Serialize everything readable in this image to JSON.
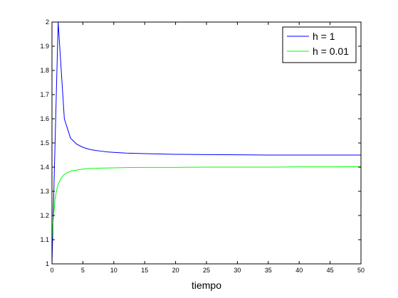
{
  "chart_data": {
    "type": "line",
    "title": "",
    "xlabel": "tiempo",
    "ylabel": "",
    "xlim": [
      0,
      50
    ],
    "ylim": [
      1,
      2
    ],
    "xticks": [
      0,
      5,
      10,
      15,
      20,
      25,
      30,
      35,
      40,
      45,
      50
    ],
    "yticks": [
      1,
      1.1,
      1.2,
      1.3,
      1.4,
      1.5,
      1.6,
      1.7,
      1.8,
      1.9,
      2
    ],
    "xtick_labels": [
      "0",
      "5",
      "10",
      "15",
      "20",
      "25",
      "30",
      "35",
      "40",
      "45",
      "50"
    ],
    "ytick_labels": [
      "1",
      "1.1",
      "1.2",
      "1.3",
      "1.4",
      "1.5",
      "1.6",
      "1.7",
      "1.8",
      "1.9",
      "2"
    ],
    "grid": false,
    "legend_position": "top-right",
    "series": [
      {
        "name": "h = 1",
        "color": "#0000ff",
        "x": [
          0,
          1,
          2,
          3,
          4,
          5,
          6,
          7,
          8,
          9,
          10,
          12,
          15,
          20,
          25,
          30,
          35,
          40,
          45,
          50
        ],
        "y": [
          1.0,
          2.0,
          1.6,
          1.52,
          1.495,
          1.482,
          1.474,
          1.469,
          1.466,
          1.463,
          1.461,
          1.458,
          1.456,
          1.453,
          1.452,
          1.451,
          1.45,
          1.45,
          1.45,
          1.45
        ]
      },
      {
        "name": "h = 0.01",
        "color": "#00ff00",
        "x": [
          0,
          0.2,
          0.5,
          0.8,
          1,
          1.5,
          2,
          2.5,
          3,
          4,
          5,
          6,
          8,
          10,
          12,
          15,
          20,
          25,
          30,
          35,
          40,
          45,
          50
        ],
        "y": [
          1.1,
          1.18,
          1.27,
          1.31,
          1.33,
          1.355,
          1.37,
          1.378,
          1.383,
          1.388,
          1.392,
          1.394,
          1.396,
          1.397,
          1.398,
          1.399,
          1.399,
          1.4,
          1.4,
          1.4,
          1.401,
          1.401,
          1.402
        ]
      }
    ]
  }
}
